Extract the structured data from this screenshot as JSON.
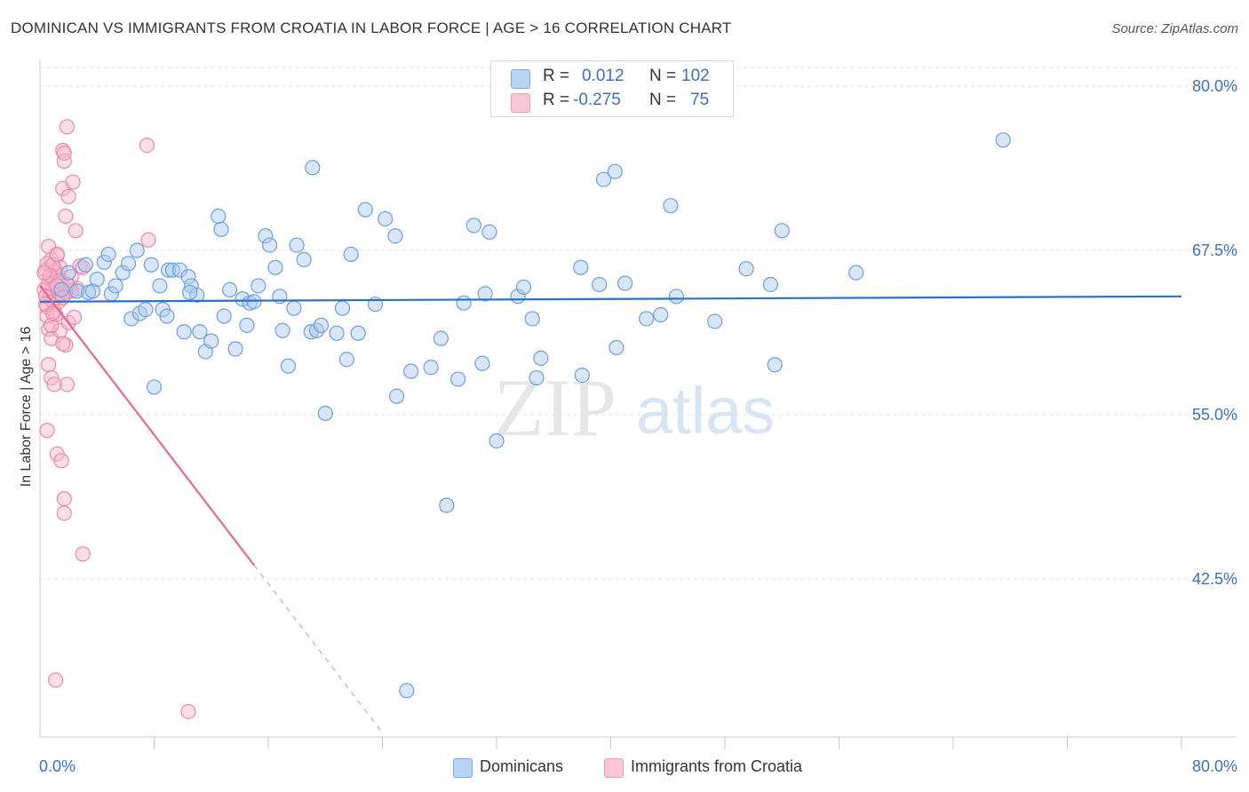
{
  "title": "DOMINICAN VS IMMIGRANTS FROM CROATIA IN LABOR FORCE | AGE > 16 CORRELATION CHART",
  "source": "Source: ZipAtlas.com",
  "watermark": {
    "zip": "ZIP",
    "atlas": "atlas"
  },
  "legend_top": {
    "rows": [
      {
        "r_label": "R =",
        "r_value": "0.012",
        "n_label": "N =",
        "n_value": "102"
      },
      {
        "r_label": "R =",
        "r_value": "-0.275",
        "n_label": "N =",
        "n_value": "75"
      }
    ]
  },
  "legend_bottom": [
    {
      "label": "Dominicans"
    },
    {
      "label": "Immigrants from Croatia"
    }
  ],
  "colors": {
    "blue_fill": "#a8c8f0",
    "blue_stroke": "#6a9fe0",
    "blue_line": "#2a6fc9",
    "pink_fill": "#f6b8cc",
    "pink_stroke": "#eb86a6",
    "pink_line": "#e46a96",
    "axis_label": "#3a6fc4",
    "grid": "#e3e3e3"
  },
  "chart_data": {
    "type": "scatter",
    "title": "DOMINICAN VS IMMIGRANTS FROM CROATIA IN LABOR FORCE | AGE > 16 CORRELATION CHART",
    "xlabel": "",
    "ylabel": "In Labor Force | Age > 16",
    "xlim": [
      0,
      80
    ],
    "ylim": [
      30,
      82
    ],
    "x_tick_labels": [
      {
        "value": 0,
        "label": "0.0%"
      },
      {
        "value": 80,
        "label": "80.0%"
      }
    ],
    "y_tick_labels": [
      {
        "value": 80,
        "label": "80.0%"
      },
      {
        "value": 67.5,
        "label": "67.5%"
      },
      {
        "value": 55,
        "label": "55.0%"
      },
      {
        "value": 42.5,
        "label": "42.5%"
      }
    ],
    "y_gridlines": [
      80,
      67.5,
      55,
      42.5
    ],
    "x_minor_ticks": [
      8,
      16,
      24,
      32,
      40,
      48,
      56,
      64,
      72,
      80
    ],
    "series": [
      {
        "name": "Dominicans",
        "r": 0.012,
        "n": 102,
        "trend": {
          "x": [
            0,
            80
          ],
          "y": [
            63.6,
            64.0
          ],
          "solid_to": 80
        },
        "points": [
          [
            1.5,
            64.5
          ],
          [
            2.0,
            65.8
          ],
          [
            2.6,
            64.4
          ],
          [
            3.2,
            66.4
          ],
          [
            3.4,
            64.3
          ],
          [
            3.7,
            64.4
          ],
          [
            4.0,
            65.3
          ],
          [
            4.5,
            66.6
          ],
          [
            4.8,
            67.2
          ],
          [
            5.0,
            64.2
          ],
          [
            5.3,
            64.8
          ],
          [
            5.8,
            65.8
          ],
          [
            6.2,
            66.5
          ],
          [
            6.4,
            62.3
          ],
          [
            6.8,
            67.5
          ],
          [
            7.0,
            62.7
          ],
          [
            7.4,
            63.0
          ],
          [
            7.8,
            66.4
          ],
          [
            8.0,
            57.1
          ],
          [
            8.4,
            64.8
          ],
          [
            8.6,
            63.0
          ],
          [
            8.9,
            62.5
          ],
          [
            9.0,
            66.0
          ],
          [
            9.3,
            66.0
          ],
          [
            9.8,
            66.0
          ],
          [
            10.1,
            61.3
          ],
          [
            10.4,
            65.5
          ],
          [
            10.6,
            64.8
          ],
          [
            11.2,
            61.3
          ],
          [
            11.0,
            64.1
          ],
          [
            11.6,
            59.8
          ],
          [
            12.0,
            60.6
          ],
          [
            12.5,
            70.1
          ],
          [
            12.7,
            69.1
          ],
          [
            12.9,
            62.5
          ],
          [
            13.3,
            64.5
          ],
          [
            13.7,
            60.0
          ],
          [
            14.2,
            63.8
          ],
          [
            14.5,
            61.8
          ],
          [
            14.7,
            63.5
          ],
          [
            15.0,
            63.6
          ],
          [
            15.3,
            64.8
          ],
          [
            15.8,
            68.6
          ],
          [
            16.1,
            67.9
          ],
          [
            16.5,
            66.2
          ],
          [
            17.0,
            61.4
          ],
          [
            17.4,
            58.7
          ],
          [
            17.8,
            63.1
          ],
          [
            18.0,
            67.9
          ],
          [
            18.5,
            66.8
          ],
          [
            19.0,
            61.3
          ],
          [
            19.1,
            73.8
          ],
          [
            19.4,
            61.4
          ],
          [
            19.7,
            61.8
          ],
          [
            20.0,
            55.1
          ],
          [
            20.8,
            61.2
          ],
          [
            21.2,
            63.1
          ],
          [
            21.5,
            59.2
          ],
          [
            21.8,
            67.2
          ],
          [
            22.3,
            61.2
          ],
          [
            22.8,
            70.6
          ],
          [
            23.5,
            63.4
          ],
          [
            24.2,
            69.9
          ],
          [
            24.9,
            68.6
          ],
          [
            25.0,
            56.4
          ],
          [
            26.0,
            58.3
          ],
          [
            27.4,
            58.6
          ],
          [
            28.1,
            60.8
          ],
          [
            28.5,
            48.1
          ],
          [
            29.3,
            57.7
          ],
          [
            29.7,
            63.5
          ],
          [
            30.4,
            69.4
          ],
          [
            31.0,
            58.9
          ],
          [
            31.2,
            64.2
          ],
          [
            31.5,
            68.9
          ],
          [
            32.0,
            53.0
          ],
          [
            33.5,
            64.0
          ],
          [
            33.9,
            64.7
          ],
          [
            34.5,
            62.3
          ],
          [
            34.8,
            57.8
          ],
          [
            35.1,
            59.3
          ],
          [
            37.9,
            66.2
          ],
          [
            39.2,
            64.9
          ],
          [
            39.5,
            72.9
          ],
          [
            40.3,
            73.5
          ],
          [
            40.4,
            60.1
          ],
          [
            41.0,
            65.0
          ],
          [
            42.5,
            62.3
          ],
          [
            43.5,
            62.6
          ],
          [
            44.2,
            70.9
          ],
          [
            44.6,
            64.0
          ],
          [
            47.3,
            62.1
          ],
          [
            49.5,
            66.1
          ],
          [
            51.2,
            64.9
          ],
          [
            51.5,
            58.8
          ],
          [
            52.0,
            69.0
          ],
          [
            57.2,
            65.8
          ],
          [
            67.5,
            75.9
          ],
          [
            25.7,
            34.0
          ],
          [
            38.0,
            58.0
          ],
          [
            10.5,
            64.3
          ],
          [
            16.8,
            64.0
          ]
        ]
      },
      {
        "name": "Immigrants from Croatia",
        "r": -0.275,
        "n": 75,
        "trend": {
          "x": [
            0,
            24
          ],
          "y": [
            64.8,
            30.8
          ],
          "solid_to": 15
        },
        "points": [
          [
            0.3,
            64.5
          ],
          [
            0.4,
            66.0
          ],
          [
            0.5,
            63.2
          ],
          [
            0.5,
            62.5
          ],
          [
            0.6,
            61.5
          ],
          [
            0.6,
            67.8
          ],
          [
            0.7,
            65.3
          ],
          [
            0.7,
            64.1
          ],
          [
            0.8,
            66.8
          ],
          [
            0.8,
            60.8
          ],
          [
            0.9,
            64.6
          ],
          [
            0.9,
            63.6
          ],
          [
            1.0,
            65.2
          ],
          [
            1.0,
            62.9
          ],
          [
            1.1,
            66.0
          ],
          [
            1.1,
            64.9
          ],
          [
            1.2,
            67.1
          ],
          [
            1.2,
            63.9
          ],
          [
            1.3,
            65.6
          ],
          [
            1.3,
            64.3
          ],
          [
            1.4,
            66.2
          ],
          [
            1.4,
            61.4
          ],
          [
            1.5,
            65.0
          ],
          [
            1.5,
            64.2
          ],
          [
            1.6,
            75.1
          ],
          [
            1.6,
            72.2
          ],
          [
            1.7,
            74.3
          ],
          [
            1.7,
            74.9
          ],
          [
            1.8,
            70.1
          ],
          [
            1.8,
            60.3
          ],
          [
            1.9,
            76.9
          ],
          [
            1.9,
            57.3
          ],
          [
            2.0,
            71.6
          ],
          [
            2.0,
            62.0
          ],
          [
            2.1,
            64.8
          ],
          [
            2.2,
            65.5
          ],
          [
            2.3,
            72.7
          ],
          [
            2.4,
            62.4
          ],
          [
            2.5,
            69.0
          ],
          [
            2.6,
            64.6
          ],
          [
            2.8,
            66.3
          ],
          [
            3.0,
            66.2
          ],
          [
            0.5,
            53.8
          ],
          [
            0.6,
            58.8
          ],
          [
            0.8,
            57.8
          ],
          [
            1.0,
            57.3
          ],
          [
            1.2,
            52.0
          ],
          [
            1.5,
            51.5
          ],
          [
            1.7,
            48.6
          ],
          [
            1.7,
            47.5
          ],
          [
            3.0,
            44.4
          ],
          [
            1.1,
            34.8
          ],
          [
            10.4,
            32.4
          ],
          [
            7.5,
            75.5
          ],
          [
            0.4,
            64.0
          ],
          [
            0.6,
            65.0
          ],
          [
            1.0,
            65.9
          ],
          [
            1.3,
            63.6
          ],
          [
            1.6,
            60.4
          ],
          [
            2.2,
            64.4
          ],
          [
            0.5,
            66.5
          ],
          [
            0.9,
            66.4
          ],
          [
            1.1,
            62.6
          ],
          [
            0.7,
            65.6
          ],
          [
            1.4,
            65.2
          ],
          [
            1.8,
            64.3
          ],
          [
            1.9,
            64.9
          ],
          [
            0.3,
            65.8
          ],
          [
            0.8,
            61.8
          ],
          [
            1.2,
            64.8
          ],
          [
            7.6,
            68.3
          ],
          [
            1.2,
            67.2
          ],
          [
            0.4,
            63.4
          ],
          [
            0.9,
            62.7
          ],
          [
            1.6,
            63.9
          ]
        ]
      }
    ]
  }
}
